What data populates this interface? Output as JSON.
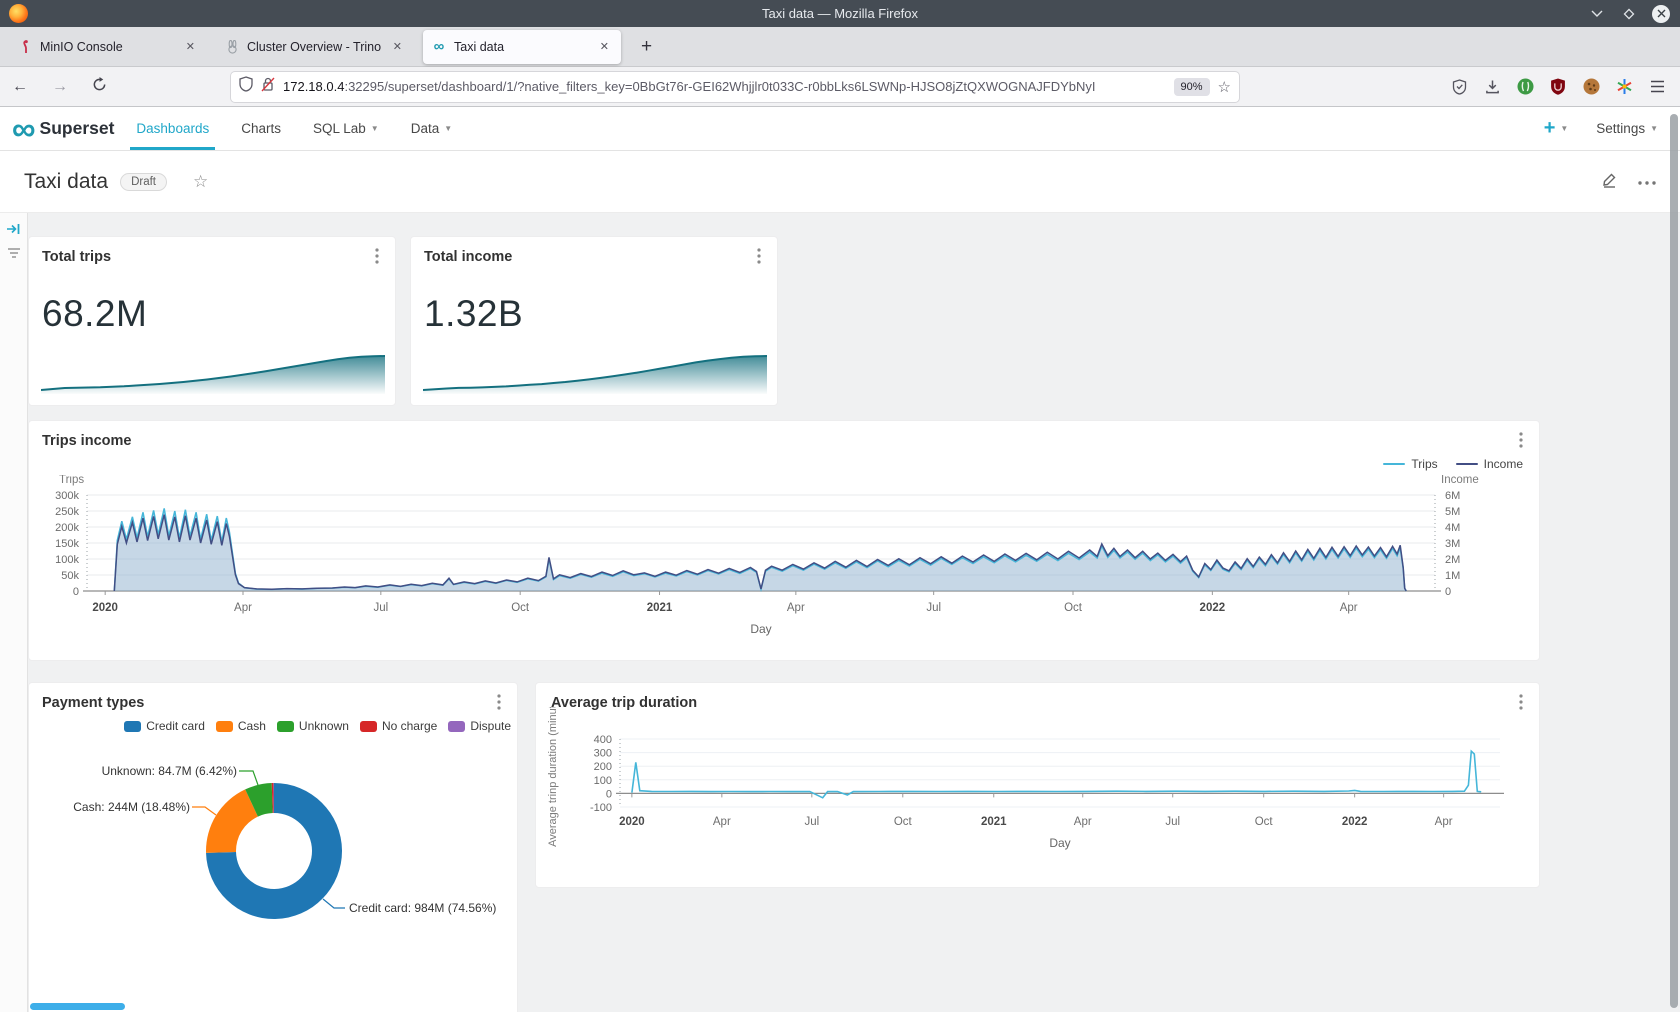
{
  "titlebar": {
    "title": "Taxi data — Mozilla Firefox"
  },
  "tabs": [
    {
      "label": "MinIO Console"
    },
    {
      "label": "Cluster Overview - Trino"
    },
    {
      "label": "Taxi data"
    }
  ],
  "urlbar": {
    "host": "172.18.0.4",
    "rest": ":32295/superset/dashboard/1/?native_filters_key=0BbGt76r-GEI62Whjjlr0t033C-r0bbLks6LSWNp-HJSO8jZtQXWOGNAJFDYbNyI",
    "zoom_level": "90%"
  },
  "nav": {
    "brand": "Superset",
    "dashboards": "Dashboards",
    "charts": "Charts",
    "sql_lab": "SQL Lab",
    "data": "Data",
    "settings": "Settings"
  },
  "page": {
    "title": "Taxi data",
    "status_badge": "Draft"
  },
  "colors": {
    "accent": "#20a7c9",
    "spark": "#14707f",
    "trips_line": "#45b6d9",
    "income_line": "#424e84",
    "area_fill": "rgba(141,176,205,0.5)",
    "scrollbar_active": "#3daee9"
  },
  "chart_data": [
    {
      "id": "total_trips",
      "type": "area",
      "title": "Total trips",
      "big_number": "68.2M",
      "ymax": 68.2,
      "values": [
        0,
        2,
        4,
        4.5,
        5,
        5.5,
        6.5,
        7.5,
        9,
        10.5,
        12,
        14,
        16,
        18.5,
        21,
        24,
        27,
        30.5,
        34,
        38,
        42,
        46,
        50,
        54,
        58,
        61.5,
        64.5,
        66.5,
        67.8,
        68.2
      ]
    },
    {
      "id": "total_income",
      "type": "area",
      "title": "Total income",
      "big_number": "1.32B",
      "ymax": 1.32,
      "values": [
        0,
        0.03,
        0.06,
        0.08,
        0.09,
        0.1,
        0.12,
        0.14,
        0.17,
        0.2,
        0.23,
        0.27,
        0.31,
        0.36,
        0.41,
        0.47,
        0.53,
        0.6,
        0.67,
        0.75,
        0.83,
        0.91,
        0.99,
        1.07,
        1.14,
        1.2,
        1.25,
        1.29,
        1.31,
        1.32
      ]
    },
    {
      "id": "trips_income",
      "type": "area",
      "title": "Trips income",
      "xlabel": "Day",
      "x_domain": [
        -12,
        878
      ],
      "x_ticks": {
        "days": [
          0,
          91,
          182,
          274,
          366,
          456,
          547,
          639,
          731,
          821
        ],
        "labels": [
          "2020",
          "Apr",
          "Jul",
          "Oct",
          "2021",
          "Apr",
          "Jul",
          "Oct",
          "2022",
          "Apr"
        ],
        "bold": [
          true,
          false,
          false,
          false,
          true,
          false,
          false,
          false,
          true,
          false
        ]
      },
      "left_axis": {
        "title": "Trips",
        "max_k": 300,
        "tick_labels": [
          "300k",
          "250k",
          "200k",
          "150k",
          "100k",
          "50k",
          "0"
        ]
      },
      "right_axis": {
        "title": "Income",
        "max_m": 6,
        "tick_labels": [
          "6M",
          "5M",
          "4M",
          "3M",
          "2M",
          "1M",
          "0"
        ]
      },
      "legend": [
        "Trips",
        "Income"
      ],
      "days": [
        6,
        8,
        11,
        14,
        18,
        21,
        25,
        28,
        32,
        35,
        39,
        42,
        46,
        49,
        53,
        56,
        60,
        63,
        67,
        70,
        74,
        77,
        80,
        82,
        84,
        86,
        88,
        92,
        100,
        110,
        120,
        130,
        140,
        150,
        158,
        165,
        172,
        180,
        188,
        195,
        202,
        209,
        216,
        223,
        227,
        230,
        237,
        244,
        251,
        258,
        265,
        272,
        279,
        286,
        291,
        293,
        296,
        300,
        307,
        314,
        321,
        328,
        335,
        342,
        349,
        356,
        363,
        370,
        377,
        384,
        391,
        398,
        405,
        412,
        419,
        426,
        430,
        433,
        436,
        440,
        447,
        454,
        461,
        468,
        475,
        482,
        489,
        496,
        503,
        510,
        517,
        524,
        531,
        538,
        545,
        552,
        559,
        566,
        573,
        580,
        587,
        594,
        601,
        608,
        615,
        622,
        629,
        636,
        643,
        650,
        655,
        658,
        662,
        666,
        670,
        675,
        680,
        685,
        690,
        695,
        700,
        705,
        710,
        714,
        718,
        722,
        726,
        730,
        734,
        738,
        742,
        746,
        750,
        754,
        758,
        762,
        766,
        770,
        774,
        778,
        782,
        786,
        790,
        794,
        798,
        802,
        806,
        810,
        814,
        818,
        822,
        826,
        830,
        834,
        838,
        842,
        846,
        850,
        853,
        855,
        857,
        858,
        859
      ],
      "trips_k": [
        0,
        158,
        218,
        162,
        232,
        166,
        246,
        170,
        252,
        176,
        258,
        172,
        250,
        166,
        254,
        172,
        246,
        162,
        240,
        158,
        234,
        154,
        228,
        185,
        120,
        55,
        25,
        10,
        6,
        5,
        7,
        6,
        8,
        9,
        12,
        10,
        15,
        12,
        18,
        14,
        20,
        16,
        23,
        18,
        38,
        20,
        27,
        22,
        30,
        24,
        33,
        27,
        38,
        31,
        44,
        100,
        36,
        48,
        40,
        52,
        43,
        56,
        46,
        60,
        48,
        54,
        44,
        56,
        47,
        61,
        50,
        64,
        53,
        67,
        55,
        70,
        58,
        6,
        62,
        74,
        62,
        79,
        65,
        84,
        68,
        88,
        71,
        91,
        73,
        94,
        76,
        96,
        78,
        99,
        81,
        102,
        83,
        104,
        86,
        107,
        88,
        110,
        91,
        112,
        93,
        115,
        95,
        118,
        98,
        122,
        103,
        140,
        105,
        127,
        103,
        122,
        99,
        118,
        95,
        113,
        91,
        109,
        87,
        104,
        62,
        42,
        82,
        64,
        92,
        68,
        60,
        86,
        67,
        96,
        73,
        101,
        79,
        108,
        84,
        114,
        88,
        119,
        93,
        124,
        97,
        127,
        100,
        130,
        103,
        132,
        105,
        134,
        107,
        131,
        104,
        129,
        102,
        133,
        110,
        136,
        70,
        8,
        0
      ],
      "income_m": [
        0,
        2.92,
        4.03,
        3.0,
        4.29,
        3.07,
        4.55,
        3.15,
        4.66,
        3.26,
        4.77,
        3.18,
        4.63,
        3.07,
        4.7,
        3.18,
        4.55,
        3.0,
        4.44,
        2.92,
        4.33,
        2.85,
        4.22,
        3.42,
        2.22,
        1.02,
        0.46,
        0.21,
        0.13,
        0.11,
        0.15,
        0.13,
        0.17,
        0.19,
        0.25,
        0.21,
        0.32,
        0.25,
        0.38,
        0.29,
        0.42,
        0.34,
        0.48,
        0.38,
        0.8,
        0.42,
        0.57,
        0.46,
        0.63,
        0.5,
        0.69,
        0.57,
        0.8,
        0.65,
        0.92,
        2.1,
        0.76,
        1.01,
        0.84,
        1.09,
        0.9,
        1.18,
        0.97,
        1.26,
        1.01,
        1.13,
        0.92,
        1.18,
        0.99,
        1.28,
        1.05,
        1.34,
        1.11,
        1.41,
        1.16,
        1.47,
        1.22,
        0.13,
        1.3,
        1.55,
        1.3,
        1.66,
        1.37,
        1.76,
        1.43,
        1.85,
        1.49,
        1.91,
        1.53,
        1.97,
        1.6,
        2.02,
        1.64,
        2.08,
        1.7,
        2.14,
        1.74,
        2.18,
        1.81,
        2.25,
        1.85,
        2.31,
        1.91,
        2.35,
        1.95,
        2.42,
        2.0,
        2.48,
        2.06,
        2.56,
        2.16,
        2.94,
        2.21,
        2.67,
        2.16,
        2.56,
        2.08,
        2.48,
        2.0,
        2.37,
        1.91,
        2.29,
        1.83,
        2.18,
        1.3,
        0.88,
        1.72,
        1.34,
        1.93,
        1.43,
        1.26,
        1.81,
        1.41,
        2.02,
        1.53,
        2.12,
        1.66,
        2.27,
        1.76,
        2.39,
        1.85,
        2.5,
        1.95,
        2.6,
        2.04,
        2.67,
        2.1,
        2.73,
        2.16,
        2.77,
        2.21,
        2.81,
        2.25,
        2.75,
        2.18,
        2.71,
        2.14,
        2.79,
        2.31,
        2.86,
        1.47,
        0.17,
        0
      ]
    },
    {
      "id": "payment_types",
      "type": "pie",
      "title": "Payment types",
      "slices": [
        {
          "label": "Credit card",
          "color": "#1f77b4",
          "pct": 74.56,
          "value": "984M",
          "callout": "Credit card: 984M (74.56%)"
        },
        {
          "label": "Cash",
          "color": "#ff7f0e",
          "pct": 18.48,
          "value": "244M",
          "callout": "Cash: 244M (18.48%)"
        },
        {
          "label": "Unknown",
          "color": "#2ca02c",
          "pct": 6.42,
          "value": "84.7M",
          "callout": "Unknown: 84.7M (6.42%)"
        },
        {
          "label": "No charge",
          "color": "#d62728",
          "pct": 0.4
        },
        {
          "label": "Dispute",
          "color": "#9467bd",
          "pct": 0.14
        }
      ]
    },
    {
      "id": "avg_trip_duration",
      "type": "line",
      "title": "Average trip duration",
      "xlabel": "Day",
      "ylabel": "Average trinp duration (minute",
      "color": "#45b6d9",
      "y_domain": [
        -100,
        400
      ],
      "y_ticks": [
        400,
        300,
        200,
        100,
        0,
        -100
      ],
      "x_domain": [
        -12,
        878
      ],
      "x_ticks": {
        "days": [
          0,
          91,
          182,
          274,
          366,
          456,
          547,
          639,
          731,
          821
        ],
        "labels": [
          "2020",
          "Apr",
          "Jul",
          "Oct",
          "2021",
          "Apr",
          "Jul",
          "Oct",
          "2022",
          "Apr"
        ],
        "bold": [
          true,
          false,
          false,
          false,
          true,
          false,
          false,
          false,
          true,
          false
        ]
      },
      "points": [
        [
          0,
          6
        ],
        [
          4,
          228
        ],
        [
          8,
          20
        ],
        [
          20,
          15
        ],
        [
          40,
          14
        ],
        [
          60,
          15
        ],
        [
          80,
          13
        ],
        [
          100,
          14
        ],
        [
          120,
          13
        ],
        [
          140,
          14
        ],
        [
          160,
          13
        ],
        [
          180,
          14
        ],
        [
          193,
          -32
        ],
        [
          198,
          13
        ],
        [
          208,
          14
        ],
        [
          218,
          -12
        ],
        [
          224,
          13
        ],
        [
          250,
          14
        ],
        [
          280,
          15
        ],
        [
          310,
          14
        ],
        [
          340,
          15
        ],
        [
          370,
          14
        ],
        [
          400,
          15
        ],
        [
          430,
          14
        ],
        [
          460,
          15
        ],
        [
          490,
          16
        ],
        [
          520,
          15
        ],
        [
          550,
          16
        ],
        [
          580,
          15
        ],
        [
          610,
          16
        ],
        [
          640,
          15
        ],
        [
          670,
          16
        ],
        [
          700,
          15
        ],
        [
          725,
          18
        ],
        [
          731,
          22
        ],
        [
          737,
          15
        ],
        [
          760,
          14
        ],
        [
          790,
          15
        ],
        [
          810,
          14
        ],
        [
          830,
          15
        ],
        [
          842,
          16
        ],
        [
          846,
          60
        ],
        [
          849,
          310
        ],
        [
          852,
          290
        ],
        [
          855,
          15
        ],
        [
          859,
          12
        ]
      ]
    }
  ]
}
